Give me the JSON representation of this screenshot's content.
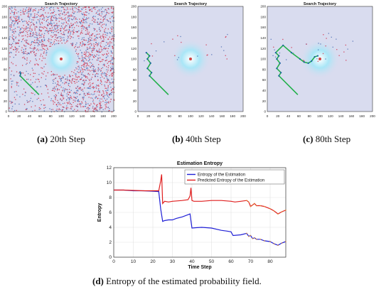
{
  "colors": {
    "field_background": "#d9dcef",
    "field_center": "#ffffff",
    "field_ring": "#a9e6f7",
    "noise_red": "#d1304a",
    "noise_blue": "#4f6fb4",
    "trajectory": "#22b04b",
    "uav_marker": "#1f5fa8",
    "entropy_line": "#1f1fd6",
    "predicted_line": "#e01f1f",
    "dot": "#cc4444"
  },
  "captions": [
    {
      "label": "(a)",
      "text": "20th Step"
    },
    {
      "label": "(b)",
      "text": "40th Step"
    },
    {
      "label": "(c)",
      "text": "80th Step"
    },
    {
      "label": "(d)",
      "text": "Entropy of the estimated probability field."
    }
  ],
  "chart_data": [
    {
      "type": "heatmap",
      "panel": "a",
      "title": "Search Trajectory",
      "xlim": [
        0,
        200
      ],
      "ylim": [
        0,
        200
      ],
      "xticks": [
        "0",
        "20",
        "40",
        "60",
        "80",
        "100",
        "120",
        "140",
        "160",
        "180",
        "200"
      ],
      "yticks": [
        "0",
        "20",
        "40",
        "60",
        "80",
        "100",
        "120",
        "140",
        "160",
        "180",
        "200"
      ],
      "source_point": [
        100,
        100
      ],
      "trajectory": [
        [
          58,
          32
        ],
        [
          22,
          68
        ],
        [
          23,
          72
        ],
        [
          22,
          75
        ]
      ]
    },
    {
      "type": "heatmap",
      "panel": "b",
      "title": "Search Trajectory",
      "xlim": [
        0,
        200
      ],
      "ylim": [
        0,
        200
      ],
      "xticks": [
        "0",
        "20",
        "40",
        "60",
        "80",
        "100",
        "120",
        "140",
        "160",
        "180",
        "200"
      ],
      "yticks": [
        "0",
        "20",
        "40",
        "60",
        "80",
        "100",
        "120",
        "140",
        "160",
        "180",
        "200"
      ],
      "source_point": [
        100,
        100
      ],
      "trajectory": [
        [
          58,
          32
        ],
        [
          22,
          68
        ],
        [
          26,
          74
        ],
        [
          18,
          82
        ],
        [
          24,
          92
        ],
        [
          18,
          100
        ],
        [
          22,
          106
        ],
        [
          16,
          112
        ]
      ]
    },
    {
      "type": "heatmap",
      "panel": "c",
      "title": "Search Trajectory",
      "xlim": [
        0,
        200
      ],
      "ylim": [
        0,
        200
      ],
      "xticks": [
        "0",
        "20",
        "40",
        "60",
        "80",
        "100",
        "120",
        "140",
        "160",
        "180",
        "200"
      ],
      "yticks": [
        "0",
        "20",
        "40",
        "60",
        "80",
        "100",
        "120",
        "140",
        "160",
        "180",
        "200"
      ],
      "source_point": [
        100,
        100
      ],
      "trajectory": [
        [
          58,
          32
        ],
        [
          22,
          68
        ],
        [
          26,
          74
        ],
        [
          18,
          82
        ],
        [
          24,
          92
        ],
        [
          18,
          100
        ],
        [
          22,
          106
        ],
        [
          16,
          112
        ],
        [
          30,
          126
        ],
        [
          46,
          112
        ],
        [
          62,
          100
        ],
        [
          70,
          94
        ],
        [
          78,
          92
        ],
        [
          84,
          96
        ],
        [
          90,
          104
        ],
        [
          96,
          106
        ]
      ]
    },
    {
      "type": "line",
      "panel": "d",
      "title": "Estimation Entropy",
      "xlabel": "Time Step",
      "ylabel": "Entropy",
      "xlim": [
        0,
        88
      ],
      "ylim": [
        0,
        12
      ],
      "xticks": [
        0,
        10,
        20,
        30,
        40,
        50,
        60,
        70,
        80
      ],
      "yticks": [
        0,
        2,
        4,
        6,
        8,
        10,
        12
      ],
      "legend_position": "top-right",
      "grid": true,
      "series": [
        {
          "name": "Entropy of the Estimation",
          "x": [
            0,
            5,
            10,
            15,
            20,
            23,
            24,
            25,
            26,
            28,
            30,
            32,
            35,
            38,
            39,
            40,
            42,
            45,
            50,
            55,
            58,
            60,
            61,
            65,
            68,
            69,
            70,
            71,
            72,
            73,
            75,
            77,
            80,
            82,
            84,
            86,
            88
          ],
          "y": [
            9.0,
            9.0,
            8.9,
            8.9,
            8.85,
            8.8,
            6.5,
            4.8,
            4.9,
            5.0,
            5.0,
            5.2,
            5.4,
            5.7,
            5.8,
            3.9,
            3.95,
            4.0,
            3.9,
            3.6,
            3.5,
            3.4,
            2.9,
            3.0,
            3.2,
            2.8,
            2.9,
            2.5,
            2.6,
            2.4,
            2.4,
            2.2,
            2.1,
            1.8,
            1.6,
            1.9,
            2.1
          ]
        },
        {
          "name": "Predicted Entropy of the Estimation",
          "x": [
            0,
            5,
            10,
            15,
            20,
            23,
            24,
            24.5,
            25,
            26,
            28,
            30,
            35,
            38,
            39,
            39.5,
            40,
            41,
            45,
            50,
            55,
            60,
            62,
            65,
            68,
            69,
            70,
            71,
            72,
            73,
            75,
            77,
            80,
            82,
            84,
            86,
            88
          ],
          "y": [
            9.0,
            9.0,
            8.95,
            8.9,
            8.9,
            8.9,
            10.2,
            11.1,
            7.2,
            7.5,
            7.4,
            7.5,
            7.6,
            7.7,
            8.2,
            9.3,
            7.6,
            7.5,
            7.5,
            7.6,
            7.6,
            7.5,
            7.4,
            7.5,
            7.6,
            7.4,
            6.8,
            7.0,
            7.2,
            6.9,
            6.9,
            6.8,
            6.5,
            6.2,
            5.8,
            6.1,
            6.3
          ]
        }
      ]
    }
  ]
}
